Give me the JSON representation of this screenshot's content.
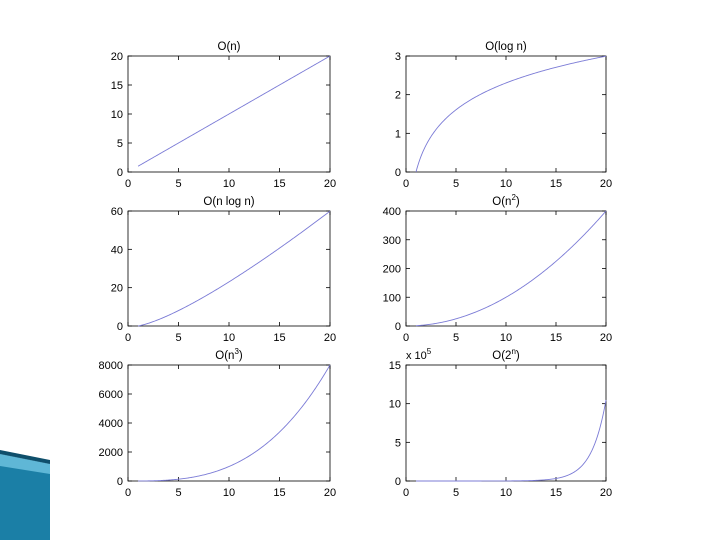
{
  "theme": {
    "line_color": "#7b7bd6",
    "accent": "#1b7fa6"
  },
  "chart_data": [
    {
      "type": "line",
      "title": "O(n)",
      "title_html": [
        "O(n)",
        "",
        ")"
      ],
      "x": [
        1,
        20
      ],
      "xlim": [
        0,
        20
      ],
      "ylim": [
        0,
        20
      ],
      "xticks": [
        "0",
        "5",
        "10",
        "15",
        "20"
      ],
      "yticks": [
        "0",
        "5",
        "10",
        "15",
        "20"
      ],
      "function": "n",
      "series": [
        {
          "x": [
            1,
            2,
            4,
            6,
            8,
            10,
            12,
            14,
            16,
            18,
            20
          ],
          "y": [
            1,
            2,
            4,
            6,
            8,
            10,
            12,
            14,
            16,
            18,
            20
          ]
        }
      ]
    },
    {
      "type": "line",
      "title": "O(log n)",
      "xlim": [
        0,
        20
      ],
      "ylim": [
        0,
        3
      ],
      "xticks": [
        "0",
        "5",
        "10",
        "15",
        "20"
      ],
      "yticks": [
        "0",
        "1",
        "2",
        "3"
      ],
      "function": "ln n",
      "series": [
        {
          "x": [
            1,
            2,
            3,
            5,
            8,
            10,
            12,
            15,
            18,
            20
          ],
          "y": [
            0,
            0.69,
            1.1,
            1.61,
            2.08,
            2.3,
            2.48,
            2.71,
            2.89,
            3.0
          ]
        }
      ]
    },
    {
      "type": "line",
      "title": "O(n log n)",
      "xlim": [
        0,
        20
      ],
      "ylim": [
        0,
        60
      ],
      "xticks": [
        "0",
        "5",
        "10",
        "15",
        "20"
      ],
      "yticks": [
        "0",
        "20",
        "40",
        "60"
      ],
      "function": "n ln n",
      "series": [
        {
          "x": [
            1,
            2,
            5,
            10,
            15,
            20
          ],
          "y": [
            0,
            1.4,
            8,
            23,
            40.6,
            59.9
          ]
        }
      ]
    },
    {
      "type": "line",
      "title": "O(n2)",
      "title_base": "O(n",
      "title_sup": "2",
      "title_end": ")",
      "xlim": [
        0,
        20
      ],
      "ylim": [
        0,
        400
      ],
      "xticks": [
        "0",
        "5",
        "10",
        "15",
        "20"
      ],
      "yticks": [
        "0",
        "100",
        "200",
        "300",
        "400"
      ],
      "function": "n^2",
      "series": [
        {
          "x": [
            1,
            5,
            10,
            15,
            20
          ],
          "y": [
            1,
            25,
            100,
            225,
            400
          ]
        }
      ]
    },
    {
      "type": "line",
      "title": "O(n3)",
      "title_base": "O(n",
      "title_sup": "3",
      "title_end": ")",
      "xlim": [
        0,
        20
      ],
      "ylim": [
        0,
        8000
      ],
      "xticks": [
        "0",
        "5",
        "10",
        "15",
        "20"
      ],
      "yticks": [
        "0",
        "2000",
        "4000",
        "6000",
        "8000"
      ],
      "function": "n^3",
      "series": [
        {
          "x": [
            1,
            5,
            10,
            15,
            20
          ],
          "y": [
            1,
            125,
            1000,
            3375,
            8000
          ]
        }
      ]
    },
    {
      "type": "line",
      "title": "O(2n)",
      "title_base": "O(2",
      "title_sup": "n",
      "title_end": ")",
      "xlim": [
        0,
        20
      ],
      "ylim": [
        0,
        15
      ],
      "xticks": [
        "0",
        "5",
        "10",
        "15",
        "20"
      ],
      "yticks": [
        "0",
        "5",
        "10",
        "15"
      ],
      "exponent_label": "x 10",
      "exponent_sup": "5",
      "function": "2^n / 1e5",
      "series": [
        {
          "x": [
            1,
            10,
            15,
            17,
            18,
            19,
            20
          ],
          "y": [
            0,
            0.01,
            0.33,
            1.31,
            2.62,
            5.24,
            10.49
          ]
        }
      ]
    }
  ]
}
